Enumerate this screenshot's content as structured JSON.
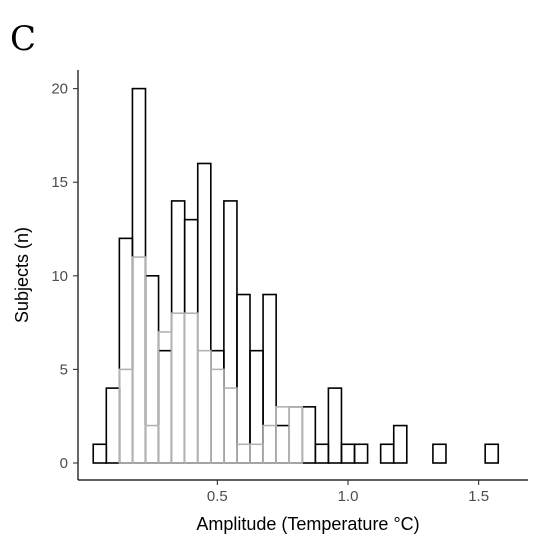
{
  "panel_label": "C",
  "chart_data": {
    "type": "histogram",
    "xlabel": "Amplitude (Temperature °C)",
    "ylabel": "Subjects (n)",
    "xlim": [
      0,
      1.75
    ],
    "ylim": [
      0,
      20
    ],
    "xticks": [
      0.5,
      1.0,
      1.5
    ],
    "xtick_labels": [
      "0.5",
      "1.0",
      "1.5"
    ],
    "yticks": [
      0,
      5,
      10,
      15,
      20
    ],
    "ytick_labels": [
      "0",
      "5",
      "10",
      "15",
      "20"
    ],
    "bin_width": 0.05,
    "bin_starts": [
      0.025,
      0.075,
      0.125,
      0.175,
      0.225,
      0.275,
      0.325,
      0.375,
      0.425,
      0.475,
      0.525,
      0.575,
      0.625,
      0.675,
      0.725,
      0.775,
      0.825,
      0.875,
      0.925,
      0.975,
      1.025,
      1.075,
      1.125,
      1.175,
      1.225,
      1.275,
      1.325,
      1.375,
      1.425,
      1.475,
      1.525,
      1.575,
      1.625,
      1.675
    ],
    "series": [
      {
        "values": [
          1,
          4,
          12,
          20,
          10,
          6,
          14,
          13,
          16,
          6,
          14,
          9,
          6,
          9,
          2,
          3,
          3,
          1,
          4,
          1,
          1,
          0,
          1,
          2,
          0,
          0,
          1,
          0,
          0,
          0,
          1,
          0,
          0,
          0
        ],
        "color": "#000000"
      },
      {
        "values": [
          0,
          0,
          5,
          11,
          2,
          7,
          8,
          8,
          6,
          5,
          4,
          1,
          1,
          2,
          3,
          3,
          0,
          0,
          0,
          0,
          0,
          0,
          0,
          0,
          0,
          0,
          0,
          0,
          0,
          0,
          0,
          0,
          0,
          0
        ],
        "color": "#b3b3b3"
      }
    ],
    "grid": false,
    "legend": "none"
  }
}
